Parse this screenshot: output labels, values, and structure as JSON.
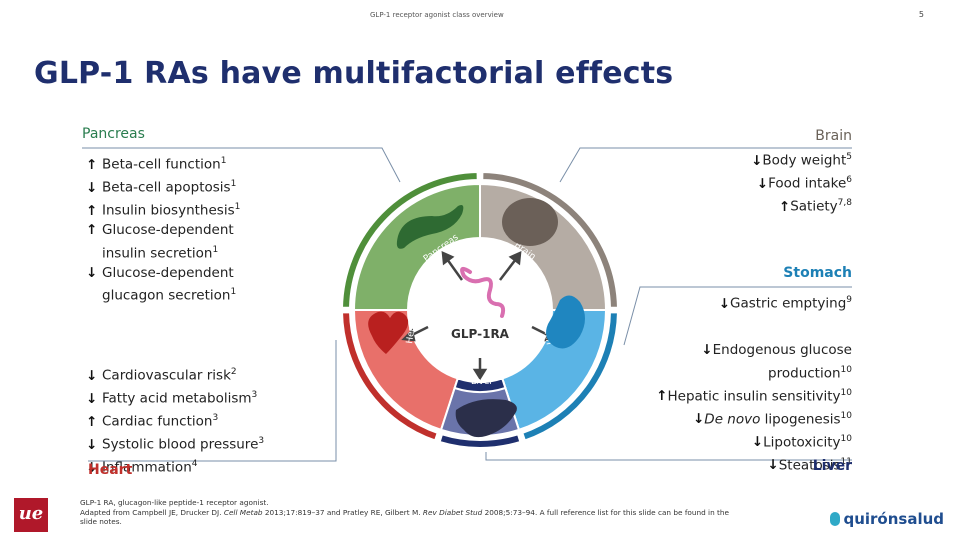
{
  "header": {
    "title": "GLP-1 receptor agonist class overview",
    "page": "5"
  },
  "title": "GLP-1 RAs have multifactorial effects",
  "colors": {
    "pancreas": "#7fb069",
    "brain": "#b5aca4",
    "stomach": "#5ab4e5",
    "liver": "#6a74aa",
    "heart": "#e8706a",
    "navy": "#1f2f6e",
    "red": "#c0302c",
    "green": "#4f8f3a",
    "blue": "#1d80b5",
    "gray": "#8d837b"
  },
  "diagram": {
    "center": "GLP-1RA",
    "segments": {
      "pancreas": "Pancreas",
      "brain": "Brain",
      "stomach": "Stomach",
      "liver": "Liver",
      "heart": "Heart"
    }
  },
  "pancreas": {
    "label": "Pancreas",
    "effects": [
      {
        "dir": "up",
        "text": "Beta-cell function",
        "ref": "1"
      },
      {
        "dir": "down",
        "text": "Beta-cell apoptosis",
        "ref": "1"
      },
      {
        "dir": "up",
        "text": "Insulin biosynthesis",
        "ref": "1"
      },
      {
        "dir": "up",
        "text": "Glucose-dependent",
        "ref": ""
      },
      {
        "dir": "none",
        "text": "insulin secretion",
        "ref": "1"
      },
      {
        "dir": "down",
        "text": "Glucose-dependent",
        "ref": ""
      },
      {
        "dir": "none",
        "text": "glucagon secretion",
        "ref": "1"
      }
    ]
  },
  "brain": {
    "label": "Brain",
    "effects": [
      {
        "dir": "down",
        "text": "Body weight",
        "ref": "5"
      },
      {
        "dir": "down",
        "text": "Food intake",
        "ref": "6"
      },
      {
        "dir": "up",
        "text": "Satiety",
        "ref": "7,8"
      }
    ]
  },
  "stomach": {
    "label": "Stomach",
    "effects": [
      {
        "dir": "down",
        "text": "Gastric emptying",
        "ref": "9"
      }
    ]
  },
  "heart": {
    "label": "Heart",
    "effects": [
      {
        "dir": "down",
        "text": "Cardiovascular risk",
        "ref": "2"
      },
      {
        "dir": "down",
        "text": "Fatty acid metabolism",
        "ref": "3"
      },
      {
        "dir": "up",
        "text": "Cardiac function",
        "ref": "3"
      },
      {
        "dir": "down",
        "text": "Systolic blood pressure",
        "ref": "3"
      },
      {
        "dir": "down",
        "text": "Inflammation",
        "ref": "4"
      }
    ]
  },
  "liver": {
    "label": "Liver",
    "effects": [
      {
        "dir": "down",
        "text": "Endogenous glucose",
        "ref": ""
      },
      {
        "dir": "none",
        "text": "production",
        "ref": "10"
      },
      {
        "dir": "up",
        "text": "Hepatic insulin sensitivity",
        "ref": "10"
      },
      {
        "dir": "down",
        "text": "De novo lipogenesis",
        "ref": "10",
        "italic_prefix": "De novo"
      },
      {
        "dir": "down",
        "text": "Lipotoxicity",
        "ref": "10"
      },
      {
        "dir": "down",
        "text": "Steatosis",
        "ref": "11"
      }
    ]
  },
  "footer": {
    "line1": "GLP-1 RA, glucagon-like peptide-1 receptor agonist.",
    "line2a": "Adapted from Campbell JE, Drucker DJ. ",
    "line2b": "Cell Metab",
    "line2c": " 2013;17:819–37 and Pratley RE, Gilbert M. ",
    "line2d": "Rev Diabet Stud",
    "line2e": " 2008;5:73–94. A full reference list for this slide can be found in the",
    "line3": "slide notes."
  },
  "logos": {
    "left": "ue",
    "right": "quirónsalud"
  }
}
